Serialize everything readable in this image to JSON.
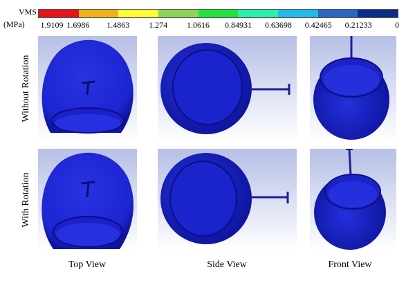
{
  "legend": {
    "title": "VMS",
    "unit": "(MPa)",
    "ticks": [
      "1.9109",
      "1.6986",
      "1.4863",
      "1.274",
      "1.0616",
      "0.84931",
      "0.63698",
      "0.42465",
      "0.21233",
      "0"
    ],
    "colors": [
      "#e5141a",
      "#f0b31c",
      "#fefe34",
      "#8fd45a",
      "#22e43a",
      "#2af0a8",
      "#25b9e8",
      "#2767c0",
      "#0d2b8a"
    ]
  },
  "rows": [
    {
      "label": "Without Rotation"
    },
    {
      "label": "With Rotation"
    }
  ],
  "columns": [
    {
      "label": "Top View"
    },
    {
      "label": "Side View"
    },
    {
      "label": "Front View"
    }
  ],
  "colors": {
    "sphere": "#1c25d6",
    "sphere_dark": "#0c12a0",
    "panel_top": "#b6bfe6",
    "panel_bottom": "#ffffff"
  }
}
